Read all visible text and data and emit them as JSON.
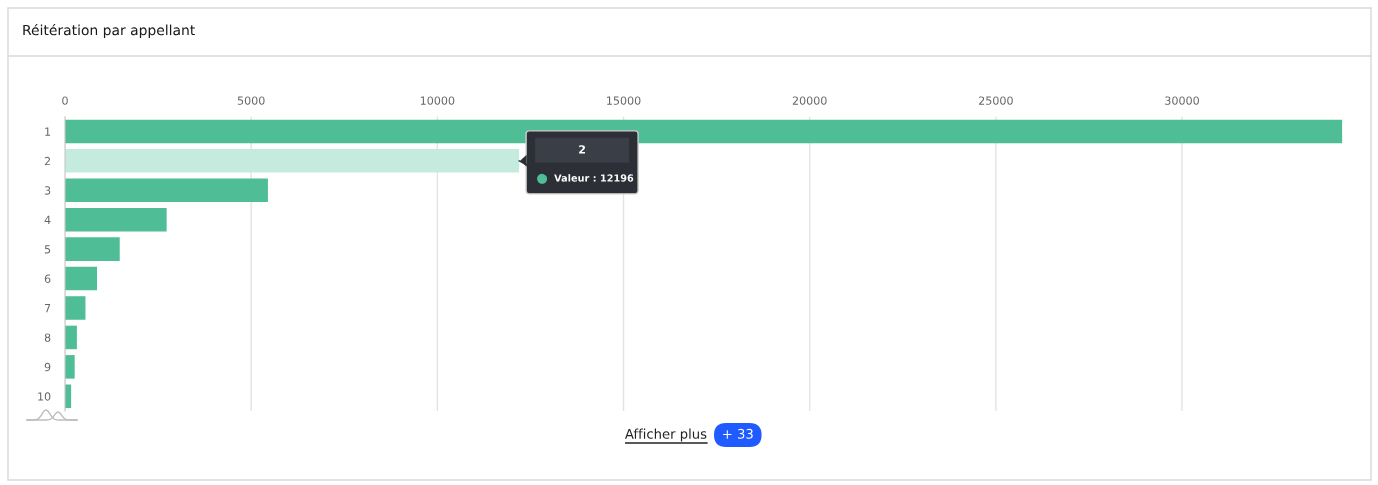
{
  "chart_data": {
    "type": "bar",
    "orientation": "horizontal",
    "title": "Réitération par appellant",
    "categories": [
      "1",
      "2",
      "3",
      "4",
      "5",
      "6",
      "7",
      "8",
      "9",
      "10"
    ],
    "values": [
      34300,
      12196,
      5450,
      2730,
      1470,
      860,
      550,
      320,
      260,
      165
    ],
    "colors": [
      "#4fbe96",
      "#c5ebdf",
      "#4fbe96",
      "#4fbe96",
      "#4fbe96",
      "#4fbe96",
      "#4fbe96",
      "#4fbe96",
      "#4fbe96",
      "#4fbe96"
    ],
    "xlim": [
      0,
      34350
    ],
    "xticks": [
      0,
      5000,
      10000,
      15000,
      20000,
      25000,
      30000
    ],
    "grid": "x",
    "annotations": [
      {
        "text": "Valeur : 12196",
        "x": 12196,
        "y": "2"
      },
      "Afficher plus",
      "+ 33"
    ]
  }
}
